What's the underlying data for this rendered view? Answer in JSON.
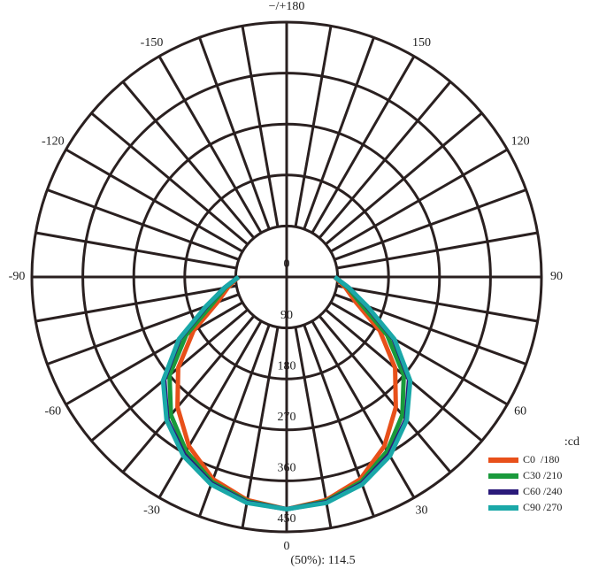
{
  "chart_data": {
    "type": "polar",
    "unit_label": ":cd",
    "footer": "(50%): 114.5",
    "rlim": [
      0,
      450
    ],
    "rticks": [
      0,
      90,
      180,
      270,
      360,
      450
    ],
    "thetaticks": [
      {
        "value": 180,
        "label": "−/+180"
      },
      150,
      120,
      90,
      60,
      30,
      0,
      -30,
      -60,
      -90,
      -120,
      -150
    ],
    "thetagrid": [
      -170,
      -160,
      -150,
      -140,
      -130,
      -120,
      -110,
      -100,
      -90,
      -80,
      -70,
      -60,
      -50,
      -40,
      -30,
      -20,
      -10,
      0,
      10,
      20,
      30,
      40,
      50,
      60,
      70,
      80,
      90,
      100,
      110,
      120,
      130,
      140,
      150,
      160,
      170,
      180
    ],
    "angles": [
      -90,
      -80,
      -70,
      -60,
      -50,
      -40,
      -30,
      -20,
      -10,
      0,
      10,
      20,
      30,
      40,
      50,
      60,
      70,
      80,
      90
    ],
    "series": [
      {
        "name": "C0  /180",
        "color": "#e8501a",
        "values": [
          85,
          105,
          130,
          190,
          250,
          300,
          345,
          380,
          400,
          410,
          400,
          380,
          345,
          300,
          250,
          190,
          130,
          105,
          85
        ]
      },
      {
        "name": "C30 /210",
        "color": "#1a9a3c",
        "values": [
          85,
          110,
          140,
          205,
          270,
          318,
          355,
          385,
          402,
          410,
          402,
          385,
          355,
          318,
          270,
          205,
          140,
          110,
          85
        ]
      },
      {
        "name": "C60 /240",
        "color": "#2a1a7a",
        "values": [
          85,
          112,
          150,
          218,
          282,
          328,
          362,
          388,
          404,
          410,
          404,
          388,
          362,
          328,
          282,
          218,
          150,
          112,
          85
        ]
      },
      {
        "name": "C90 /270",
        "color": "#1aa8a8",
        "values": [
          85,
          112,
          152,
          220,
          285,
          330,
          365,
          390,
          405,
          410,
          405,
          390,
          365,
          330,
          285,
          220,
          152,
          112,
          85
        ]
      }
    ]
  }
}
